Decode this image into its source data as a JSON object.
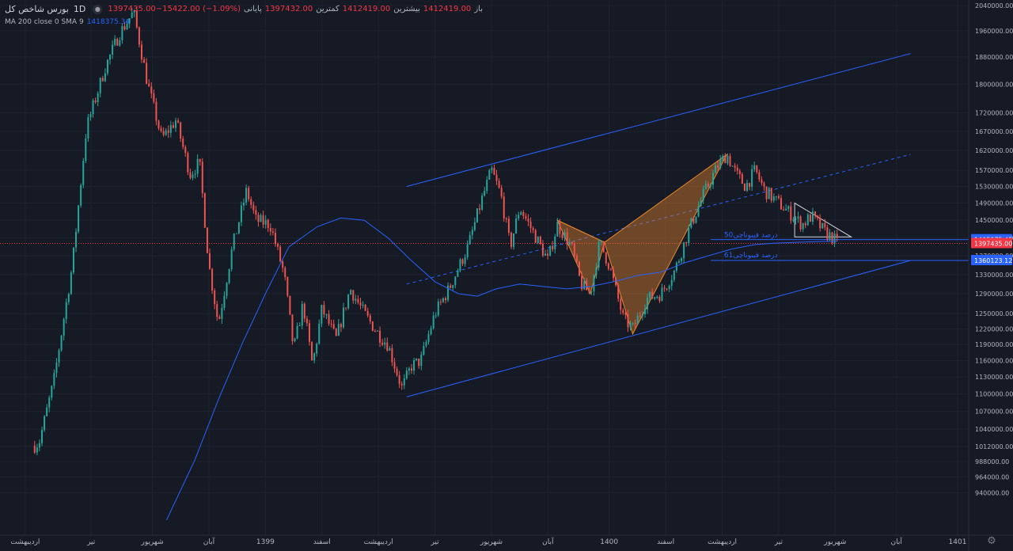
{
  "legend": {
    "title": "بورس  شاخص کل",
    "timeframe": "1D",
    "open_label": "باز",
    "open_value": "1412419.00",
    "high_label": "بیشترین",
    "high_value": "1412419.00",
    "low_label": "کمترین",
    "low_value": "1397432.00",
    "close_label": "پایانی",
    "close_value": "1397435.00",
    "change_value": "1397435.00−15422.00 (−1.09%)",
    "ma_label": "MA 200 close 0 SMA 9",
    "ma_value": "1418375.34"
  },
  "price_tags": {
    "upper": "1405975.45",
    "current": "1397435.00",
    "lower": "1360123.12"
  },
  "fib_labels": {
    "fib50": "درصد فیبوناچی50",
    "fib61": "درصد فیبوناچی61"
  },
  "colors": {
    "background": "#161a25",
    "up": "#26a69a",
    "down": "#ef5350",
    "ma": "#2962ff",
    "channel": "#2962ff",
    "pattern": "#e8862a",
    "current_price": "#f23645",
    "axis_text": "#b2b5be"
  },
  "chart_data": {
    "type": "candlestick",
    "title": "",
    "y_scale": "log",
    "ylim": [
      900000,
      2040000
    ],
    "y_ticks": [
      2040000,
      1960000,
      1880000,
      1800000,
      1720000,
      1670000,
      1620000,
      1570000,
      1530000,
      1490000,
      1450000,
      1410000,
      1370000,
      1330000,
      1290000,
      1250000,
      1220000,
      1190000,
      1160000,
      1130000,
      1100000,
      1070000,
      1040000,
      1012000,
      988000,
      964000,
      940000
    ],
    "x_ticks": [
      {
        "label": "اردیبهشت",
        "t": 0.01
      },
      {
        "label": "تیر",
        "t": 0.08
      },
      {
        "label": "شهریور",
        "t": 0.145
      },
      {
        "label": "آبان",
        "t": 0.205
      },
      {
        "label": "1399",
        "t": 0.265
      },
      {
        "label": "اسفند",
        "t": 0.325
      },
      {
        "label": "اردیبهشت",
        "t": 0.385
      },
      {
        "label": "تیر",
        "t": 0.445
      },
      {
        "label": "شهریور",
        "t": 0.505
      },
      {
        "label": "آبان",
        "t": 0.565
      },
      {
        "label": "1400",
        "t": 0.63
      },
      {
        "label": "اسفند",
        "t": 0.69
      },
      {
        "label": "اردیبهشت",
        "t": 0.75
      },
      {
        "label": "تیر",
        "t": 0.81
      },
      {
        "label": "شهریور",
        "t": 0.87
      },
      {
        "label": "آبان",
        "t": 0.935
      },
      {
        "label": "1401",
        "t": 1.0
      }
    ],
    "x_domain": [
      0,
      1.0
    ],
    "x_visible_max": 1.063,
    "close_keypoints": [
      [
        0.0,
        950000
      ],
      [
        0.01,
        1000000
      ],
      [
        0.025,
        1020000
      ],
      [
        0.04,
        1120000
      ],
      [
        0.06,
        1350000
      ],
      [
        0.075,
        1680000
      ],
      [
        0.095,
        1850000
      ],
      [
        0.11,
        1950000
      ],
      [
        0.125,
        2020000
      ],
      [
        0.14,
        1800000
      ],
      [
        0.155,
        1650000
      ],
      [
        0.17,
        1700000
      ],
      [
        0.185,
        1560000
      ],
      [
        0.195,
        1590000
      ],
      [
        0.205,
        1350000
      ],
      [
        0.215,
        1230000
      ],
      [
        0.23,
        1390000
      ],
      [
        0.245,
        1520000
      ],
      [
        0.255,
        1450000
      ],
      [
        0.27,
        1440000
      ],
      [
        0.285,
        1330000
      ],
      [
        0.295,
        1180000
      ],
      [
        0.305,
        1270000
      ],
      [
        0.315,
        1150000
      ],
      [
        0.325,
        1260000
      ],
      [
        0.34,
        1200000
      ],
      [
        0.355,
        1300000
      ],
      [
        0.37,
        1250000
      ],
      [
        0.385,
        1210000
      ],
      [
        0.395,
        1190000
      ],
      [
        0.41,
        1110000
      ],
      [
        0.42,
        1150000
      ],
      [
        0.43,
        1160000
      ],
      [
        0.445,
        1250000
      ],
      [
        0.46,
        1300000
      ],
      [
        0.48,
        1390000
      ],
      [
        0.495,
        1500000
      ],
      [
        0.505,
        1570000
      ],
      [
        0.515,
        1510000
      ],
      [
        0.525,
        1390000
      ],
      [
        0.535,
        1480000
      ],
      [
        0.55,
        1420000
      ],
      [
        0.565,
        1360000
      ],
      [
        0.575,
        1440000
      ],
      [
        0.59,
        1390000
      ],
      [
        0.6,
        1310000
      ],
      [
        0.61,
        1290000
      ],
      [
        0.62,
        1400000
      ],
      [
        0.63,
        1350000
      ],
      [
        0.645,
        1240000
      ],
      [
        0.655,
        1220000
      ],
      [
        0.67,
        1280000
      ],
      [
        0.685,
        1290000
      ],
      [
        0.7,
        1340000
      ],
      [
        0.715,
        1430000
      ],
      [
        0.73,
        1510000
      ],
      [
        0.745,
        1580000
      ],
      [
        0.755,
        1610000
      ],
      [
        0.765,
        1560000
      ],
      [
        0.775,
        1530000
      ],
      [
        0.785,
        1570000
      ],
      [
        0.795,
        1520000
      ],
      [
        0.81,
        1490000
      ],
      [
        0.82,
        1470000
      ],
      [
        0.835,
        1440000
      ],
      [
        0.845,
        1460000
      ],
      [
        0.86,
        1420000
      ],
      [
        0.868,
        1410000
      ],
      [
        0.872,
        1397435
      ]
    ],
    "series": [
      {
        "name": "MA 200 close 0 SMA 9",
        "type": "line",
        "points": [
          [
            0.16,
            900000
          ],
          [
            0.19,
            990000
          ],
          [
            0.215,
            1090000
          ],
          [
            0.24,
            1190000
          ],
          [
            0.265,
            1290000
          ],
          [
            0.29,
            1390000
          ],
          [
            0.32,
            1435000
          ],
          [
            0.345,
            1455000
          ],
          [
            0.37,
            1450000
          ],
          [
            0.395,
            1410000
          ],
          [
            0.42,
            1360000
          ],
          [
            0.445,
            1315000
          ],
          [
            0.47,
            1290000
          ],
          [
            0.49,
            1285000
          ],
          [
            0.51,
            1300000
          ],
          [
            0.535,
            1310000
          ],
          [
            0.56,
            1305000
          ],
          [
            0.585,
            1300000
          ],
          [
            0.61,
            1305000
          ],
          [
            0.635,
            1315000
          ],
          [
            0.66,
            1328000
          ],
          [
            0.685,
            1335000
          ],
          [
            0.71,
            1355000
          ],
          [
            0.735,
            1370000
          ],
          [
            0.76,
            1385000
          ],
          [
            0.785,
            1395000
          ],
          [
            0.805,
            1398000
          ],
          [
            0.83,
            1400000
          ],
          [
            0.86,
            1402000
          ],
          [
            0.872,
            1402000
          ]
        ]
      }
    ],
    "annotations": {
      "channel_upper": [
        [
          0.415,
          1530000
        ],
        [
          0.95,
          1890000
        ]
      ],
      "channel_mid": [
        [
          0.415,
          1310000
        ],
        [
          0.95,
          1610000
        ]
      ],
      "channel_lower": [
        [
          0.415,
          1095000
        ],
        [
          0.95,
          1360000
        ]
      ],
      "pattern_points": [
        [
          0.575,
          1450000
        ],
        [
          0.61,
          1290000
        ],
        [
          0.625,
          1400000
        ],
        [
          0.655,
          1210000
        ],
        [
          0.755,
          1610000
        ]
      ],
      "triangle": [
        [
          0.827,
          1490000
        ],
        [
          0.827,
          1412000
        ],
        [
          0.887,
          1412000
        ]
      ],
      "fib_lines": [
        {
          "label": "درصد فیبوناچی50",
          "value": 1405975.45
        },
        {
          "label": "درصد فیبوناچی61",
          "value": 1360123.12
        }
      ],
      "current_price": 1397435
    }
  }
}
